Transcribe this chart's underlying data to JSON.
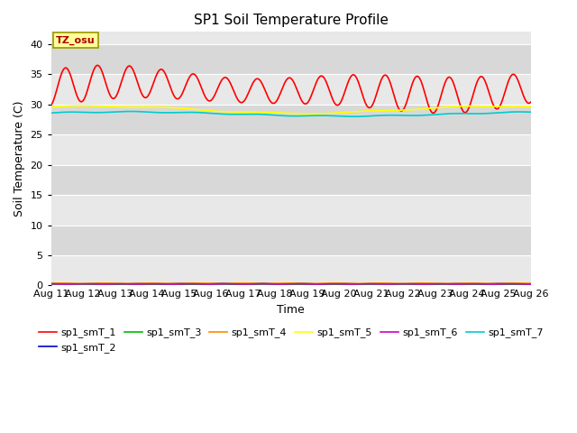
{
  "title": "SP1 Soil Temperature Profile",
  "xlabel": "Time",
  "ylabel": "Soil Temperature (C)",
  "ylim": [
    0,
    42
  ],
  "yticks": [
    0,
    5,
    10,
    15,
    20,
    25,
    30,
    35,
    40
  ],
  "x_labels": [
    "Aug 11",
    "Aug 12",
    "Aug 13",
    "Aug 14",
    "Aug 15",
    "Aug 16",
    "Aug 17",
    "Aug 18",
    "Aug 19",
    "Aug 20",
    "Aug 21",
    "Aug 22",
    "Aug 23",
    "Aug 24",
    "Aug 25",
    "Aug 26"
  ],
  "annotation_text": "TZ_osu",
  "annotation_bg": "#ffff99",
  "annotation_fg": "#aa0000",
  "bg_color": "#e8e8e8",
  "bg_band_light": "#e8e8e8",
  "bg_band_dark": "#d8d8d8",
  "series_colors": {
    "sp1_smT_1": "#ff0000",
    "sp1_smT_2": "#0000cc",
    "sp1_smT_3": "#00bb00",
    "sp1_smT_4": "#ff8800",
    "sp1_smT_5": "#ffff00",
    "sp1_smT_6": "#cc00cc",
    "sp1_smT_7": "#00cccc"
  },
  "line_width": 1.2,
  "n_points": 1500
}
